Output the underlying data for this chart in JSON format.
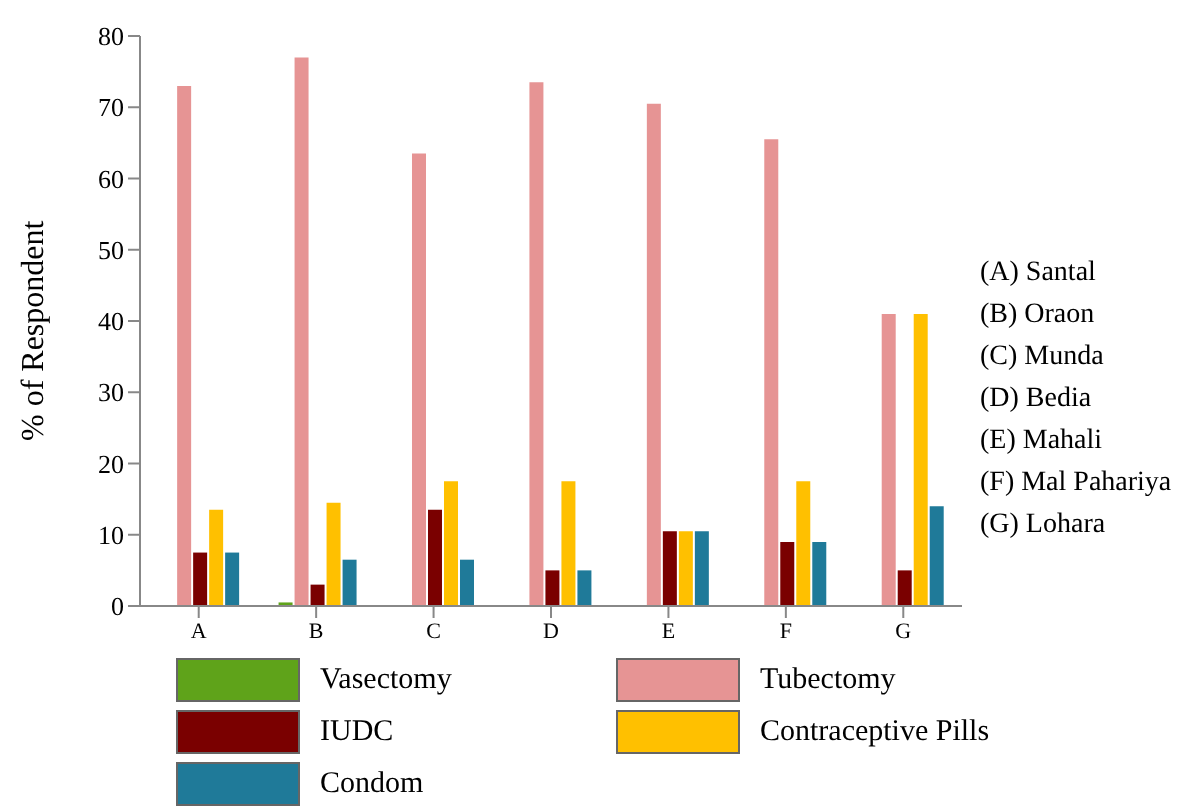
{
  "chart_data": {
    "type": "bar",
    "ylabel": "% of Respondent",
    "categories": [
      "A",
      "B",
      "C",
      "D",
      "E",
      "F",
      "G"
    ],
    "series": [
      {
        "name": "Vasectomy",
        "color": "#5fa31a",
        "values": [
          0,
          0.5,
          0,
          0,
          0,
          0,
          0
        ]
      },
      {
        "name": "Tubectomy",
        "color": "#e69494",
        "values": [
          73,
          77,
          63.5,
          73.5,
          70.5,
          65.5,
          41
        ]
      },
      {
        "name": "IUDC",
        "color": "#7a0000",
        "values": [
          7.5,
          3,
          13.5,
          5,
          10.5,
          9,
          5
        ]
      },
      {
        "name": "Contraceptive Pills",
        "color": "#ffc000",
        "values": [
          13.5,
          14.5,
          17.5,
          17.5,
          10.5,
          17.5,
          41
        ]
      },
      {
        "name": "Condom",
        "color": "#1f7a99",
        "values": [
          7.5,
          6.5,
          6.5,
          5,
          10.5,
          9,
          14
        ]
      }
    ],
    "ylim": [
      0,
      80
    ],
    "yticks": [
      0,
      10,
      20,
      30,
      40,
      50,
      60,
      70,
      80
    ],
    "grid": false,
    "legend": "bottom",
    "annotations": [
      "(A) Santal",
      "(B) Oraon",
      "(C) Munda",
      "(D) Bedia",
      "(E) Mahali",
      "(F) Mal Pahariya",
      "(G) Lohara"
    ]
  }
}
